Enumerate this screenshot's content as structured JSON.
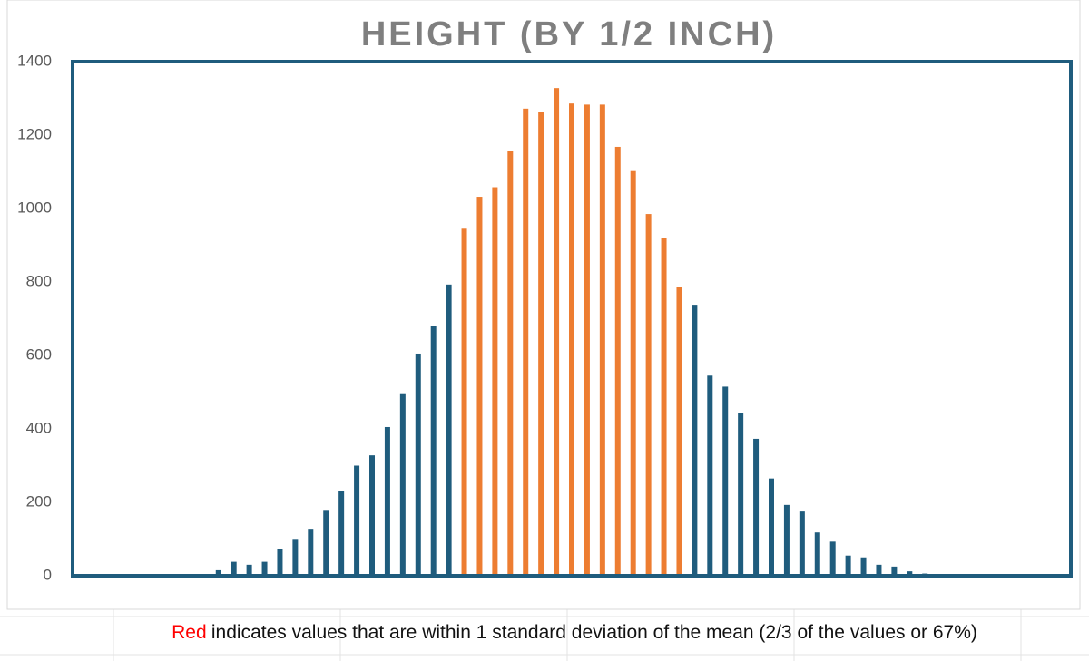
{
  "chart_data": {
    "type": "bar",
    "title": "HEIGHT (BY 1/2 INCH)",
    "values": [
      0,
      0,
      0,
      0,
      0,
      0,
      0,
      0,
      0,
      15,
      38,
      30,
      38,
      73,
      98,
      128,
      177,
      230,
      300,
      328,
      405,
      497,
      605,
      680,
      793,
      945,
      1032,
      1058,
      1158,
      1272,
      1262,
      1328,
      1286,
      1283,
      1283,
      1168,
      1102,
      985,
      920,
      787,
      738,
      545,
      515,
      442,
      373,
      265,
      193,
      175,
      118,
      93,
      55,
      50,
      30,
      25,
      12,
      6,
      0,
      0,
      0,
      0,
      0,
      0,
      0,
      0,
      0
    ],
    "colors": [
      "#1f5c7d",
      "#1f5c7d",
      "#1f5c7d",
      "#1f5c7d",
      "#1f5c7d",
      "#1f5c7d",
      "#1f5c7d",
      "#1f5c7d",
      "#1f5c7d",
      "#1f5c7d",
      "#1f5c7d",
      "#1f5c7d",
      "#1f5c7d",
      "#1f5c7d",
      "#1f5c7d",
      "#1f5c7d",
      "#1f5c7d",
      "#1f5c7d",
      "#1f5c7d",
      "#1f5c7d",
      "#1f5c7d",
      "#1f5c7d",
      "#1f5c7d",
      "#1f5c7d",
      "#1f5c7d",
      "#ed7d31",
      "#ed7d31",
      "#ed7d31",
      "#ed7d31",
      "#ed7d31",
      "#ed7d31",
      "#ed7d31",
      "#ed7d31",
      "#ed7d31",
      "#ed7d31",
      "#ed7d31",
      "#ed7d31",
      "#ed7d31",
      "#ed7d31",
      "#ed7d31",
      "#1f5c7d",
      "#1f5c7d",
      "#1f5c7d",
      "#1f5c7d",
      "#1f5c7d",
      "#1f5c7d",
      "#1f5c7d",
      "#1f5c7d",
      "#1f5c7d",
      "#1f5c7d",
      "#1f5c7d",
      "#1f5c7d",
      "#1f5c7d",
      "#1f5c7d",
      "#1f5c7d",
      "#1f5c7d",
      "#1f5c7d",
      "#1f5c7d",
      "#1f5c7d",
      "#1f5c7d",
      "#1f5c7d",
      "#1f5c7d",
      "#1f5c7d",
      "#1f5c7d",
      "#1f5c7d"
    ],
    "ylim": [
      0,
      1400
    ],
    "yticks": [
      0,
      200,
      400,
      600,
      800,
      1000,
      1200,
      1400
    ],
    "grid": false,
    "note": {
      "keyword": "Red",
      "keyword_color": "#ff0000",
      "text": "indicates values that are within 1 standard deviation of the mean (2/3 of the values or 67%)"
    }
  }
}
